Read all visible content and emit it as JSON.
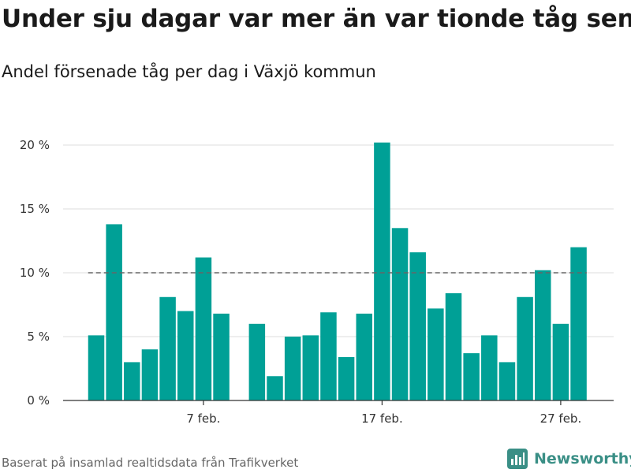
{
  "title": "Under sju dagar var mer än var tionde tåg sent",
  "subtitle": "Andel försenade tåg per dag i Växjö kommun",
  "footer": "Baserat på insamlad realtidsdata från Trafikverket",
  "brand": "Newsworthy",
  "colors": {
    "bar": "#00a096",
    "reference_line": "#666666",
    "grid": "#dddddd",
    "brand": "#3a8f86"
  },
  "chart_data": {
    "type": "bar",
    "days": [
      1,
      2,
      3,
      4,
      5,
      6,
      7,
      8,
      9,
      10,
      11,
      12,
      13,
      14,
      15,
      16,
      17,
      18,
      19,
      20,
      21,
      22,
      23,
      24,
      25,
      26,
      27,
      28
    ],
    "values": [
      5.1,
      13.8,
      3.0,
      4.0,
      8.1,
      7.0,
      11.2,
      6.8,
      null,
      6.0,
      1.9,
      5.0,
      5.1,
      6.9,
      3.4,
      6.8,
      20.2,
      13.5,
      11.6,
      7.2,
      8.4,
      3.7,
      5.1,
      3.0,
      8.1,
      10.2,
      6.0,
      12.0
    ],
    "x_ticks": [
      {
        "day": 7,
        "label": "7 feb."
      },
      {
        "day": 17,
        "label": "17 feb."
      },
      {
        "day": 27,
        "label": "27 feb."
      }
    ],
    "y_ticks": [
      {
        "value": 0,
        "label": "0 %"
      },
      {
        "value": 5,
        "label": "5 %"
      },
      {
        "value": 10,
        "label": "10 %"
      },
      {
        "value": 15,
        "label": "15 %"
      },
      {
        "value": 20,
        "label": "20 %"
      }
    ],
    "ylim": [
      0,
      20
    ],
    "reference_line": 10,
    "grid": true,
    "legend": "none"
  }
}
